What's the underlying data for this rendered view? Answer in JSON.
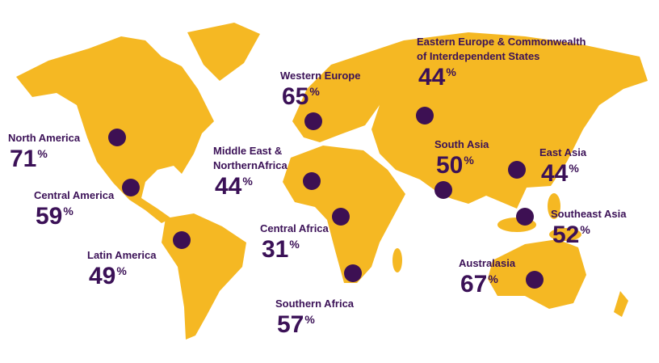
{
  "unit": "%",
  "regions": [
    {
      "name_lines": [
        "North America"
      ],
      "value": 71
    },
    {
      "name_lines": [
        "Central America"
      ],
      "value": 59
    },
    {
      "name_lines": [
        "Latin America"
      ],
      "value": 49
    },
    {
      "name_lines": [
        "Western  Europe"
      ],
      "value": 65
    },
    {
      "name_lines": [
        "Middle East &",
        "NorthernAfrica"
      ],
      "value": 44
    },
    {
      "name_lines": [
        "Central Africa"
      ],
      "value": 31
    },
    {
      "name_lines": [
        "Southern Africa"
      ],
      "value": 57
    },
    {
      "name_lines": [
        "Eastern Europe & Commonwealth",
        "of Interdependent States"
      ],
      "value": 44
    },
    {
      "name_lines": [
        "South  Asia"
      ],
      "value": 50
    },
    {
      "name_lines": [
        "East  Asia"
      ],
      "value": 44
    },
    {
      "name_lines": [
        "Southeast Asia"
      ],
      "value": 52
    },
    {
      "name_lines": [
        "Australasia"
      ],
      "value": 67
    }
  ]
}
